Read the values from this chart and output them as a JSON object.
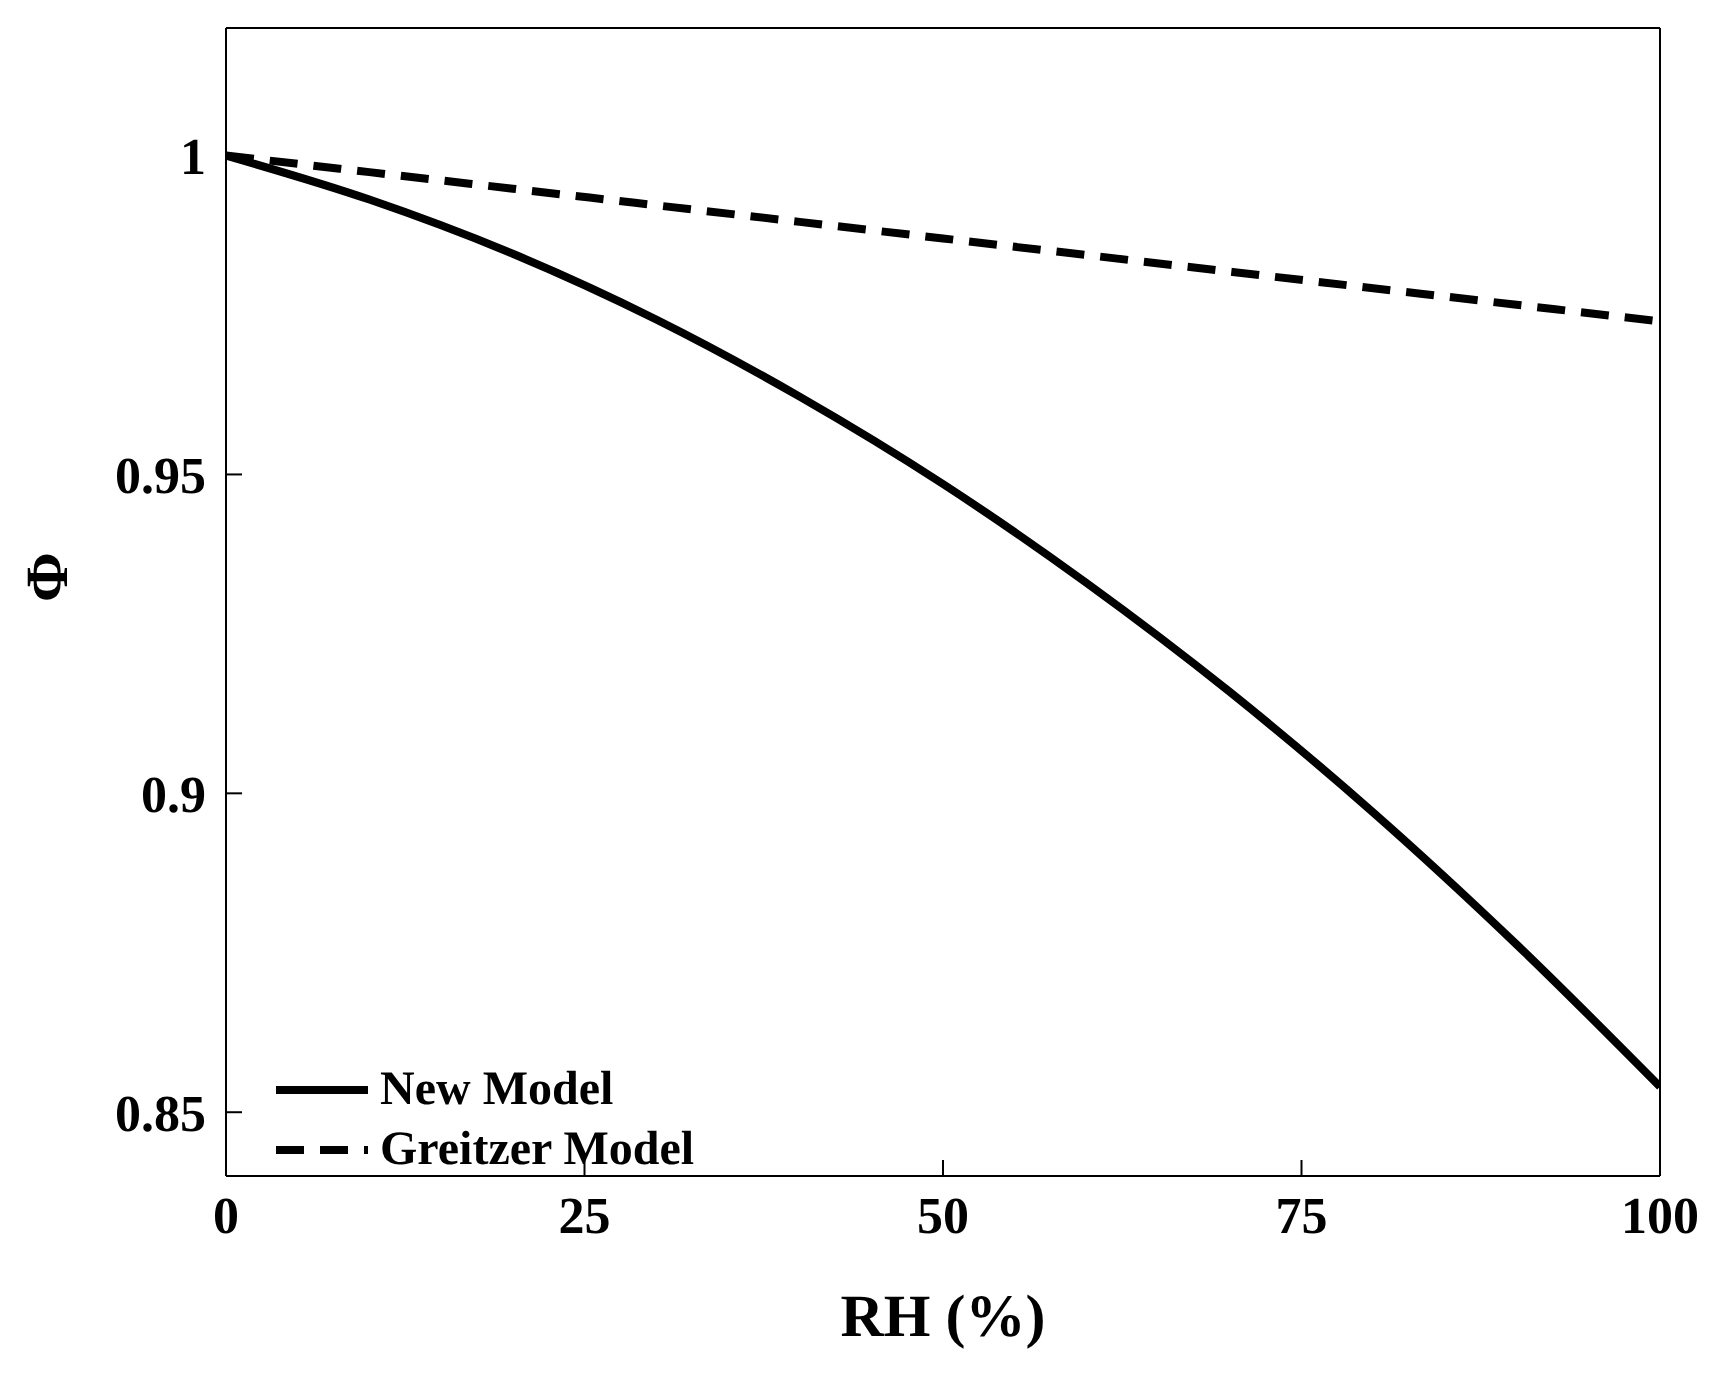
{
  "chart_data": {
    "type": "line",
    "xlabel": "RH (%)",
    "ylabel": "Φ",
    "x": [
      0,
      10,
      20,
      30,
      40,
      50,
      60,
      70,
      80,
      90,
      100
    ],
    "series": [
      {
        "name": "New Model",
        "color": "#000000",
        "line_style": "solid",
        "values": [
          1,
          0.9931,
          0.9846,
          0.9743,
          0.9622,
          0.9485,
          0.933,
          0.9159,
          0.897,
          0.8763,
          0.854
        ]
      },
      {
        "name": "Greitzer Model",
        "color": "#000000",
        "line_style": "dashed",
        "values": [
          1,
          0.9974,
          0.9948,
          0.9922,
          0.9896,
          0.987,
          0.9844,
          0.9818,
          0.9792,
          0.9766,
          0.974
        ]
      }
    ],
    "xlim": [
      0,
      100
    ],
    "xticks": [
      0,
      25,
      50,
      75,
      100
    ],
    "ylim": [
      0.84,
      1.02
    ],
    "yticks": [
      0.85,
      0.9,
      0.95,
      1
    ],
    "grid": false,
    "legend": "bottom left",
    "marker": "none"
  }
}
